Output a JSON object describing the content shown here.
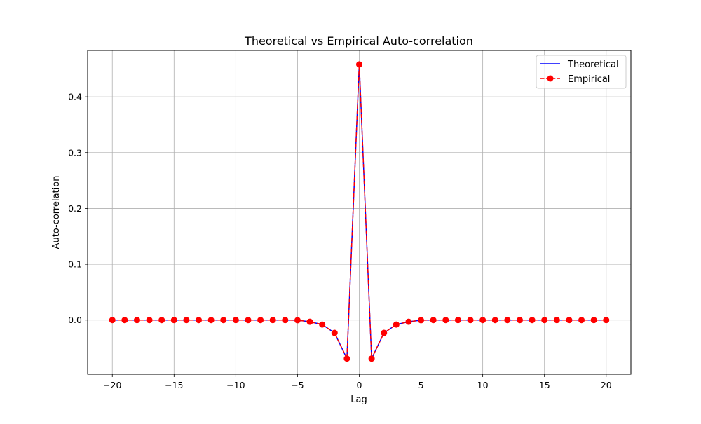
{
  "chart_data": {
    "type": "line",
    "title": "Theoretical vs Empirical Auto-correlation",
    "xlabel": "Lag",
    "ylabel": "Auto-correlation",
    "xlim": [
      -22,
      22
    ],
    "ylim": [
      -0.097,
      0.483
    ],
    "xticks": [
      -20,
      -15,
      -10,
      -5,
      0,
      5,
      10,
      15,
      20
    ],
    "xtick_labels": [
      "−20",
      "−15",
      "−10",
      "−5",
      "0",
      "5",
      "10",
      "15",
      "20"
    ],
    "yticks": [
      0.0,
      0.1,
      0.2,
      0.3,
      0.4
    ],
    "ytick_labels": [
      "0.0",
      "0.1",
      "0.2",
      "0.3",
      "0.4"
    ],
    "grid": true,
    "legend_position": "top-right",
    "x": [
      -20,
      -19,
      -18,
      -17,
      -16,
      -15,
      -14,
      -13,
      -12,
      -11,
      -10,
      -9,
      -8,
      -7,
      -6,
      -5,
      -4,
      -3,
      -2,
      -1,
      0,
      1,
      2,
      3,
      4,
      5,
      6,
      7,
      8,
      9,
      10,
      11,
      12,
      13,
      14,
      15,
      16,
      17,
      18,
      19,
      20
    ],
    "series": [
      {
        "name": "Theoretical",
        "color": "#0000ff",
        "style": "solid",
        "marker": "none",
        "values": [
          0,
          0,
          0,
          0,
          0,
          0,
          0,
          0,
          0,
          0,
          0,
          0,
          0,
          0,
          0,
          -0.0002,
          -0.003,
          -0.008,
          -0.023,
          -0.069,
          0.458,
          -0.069,
          -0.023,
          -0.008,
          -0.003,
          -0.0002,
          0,
          0,
          0,
          0,
          0,
          0,
          0,
          0,
          0,
          0,
          0,
          0,
          0,
          0,
          0
        ]
      },
      {
        "name": "Empirical",
        "color": "#ff0000",
        "style": "dashed",
        "marker": "circle",
        "values": [
          0,
          0,
          0,
          0,
          0,
          0,
          0,
          0,
          0,
          0,
          0,
          0,
          0,
          0,
          0,
          -0.0002,
          -0.003,
          -0.008,
          -0.023,
          -0.069,
          0.458,
          -0.069,
          -0.023,
          -0.008,
          -0.003,
          -0.0002,
          0,
          0,
          0,
          0,
          0,
          0,
          0,
          0,
          0,
          0,
          0,
          0,
          0,
          0,
          0
        ]
      }
    ]
  }
}
